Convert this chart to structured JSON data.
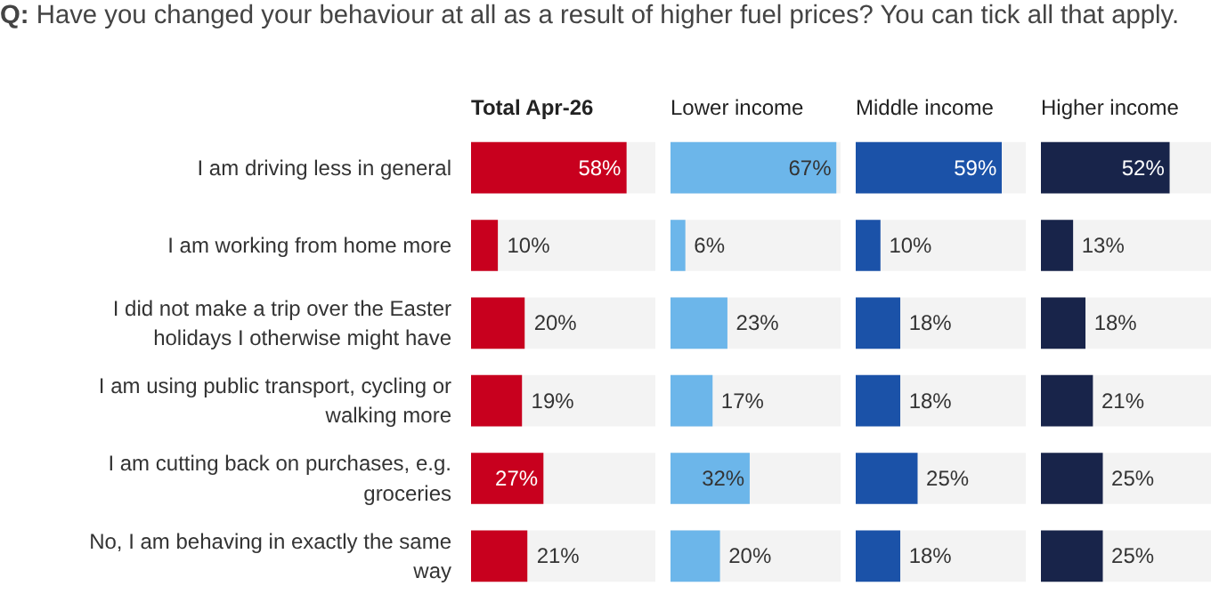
{
  "chart_data": [
    {
      "type": "bar",
      "orientation": "horizontal",
      "title": "Total Apr-26",
      "annotations": [
        "Q: Have you changed your behaviour at all as a result of higher fuel prices? You can tick all that apply."
      ],
      "categories": [
        "I am driving less in general",
        "I am working from home more",
        "I did not make a trip over the Easter holidays I otherwise might have",
        "I am using public transport, cycling or walking more",
        "I am cutting back on purchases, e.g. groceries",
        "No, I am behaving in exactly the same way"
      ],
      "tick_labels": "y",
      "series": [
        {
          "color": "#c8001e",
          "values": [
            58,
            10,
            20,
            19,
            27,
            21
          ],
          "value_labels": [
            "58%",
            "10%",
            "20%",
            "19%",
            "27%",
            "21%"
          ]
        }
      ]
    },
    {
      "type": "bar",
      "orientation": "horizontal",
      "title": "Lower income",
      "categories": [
        "I am driving less in general",
        "I am working from home more",
        "I did not make a trip over the Easter holidays I otherwise might have",
        "I am using public transport, cycling or walking more",
        "I am cutting back on purchases, e.g. groceries",
        "No, I am behaving in exactly the same way"
      ],
      "tick_labels": false,
      "series": [
        {
          "color": "#6cb6ea",
          "values": [
            67,
            6,
            23,
            17,
            32,
            20
          ],
          "value_labels": [
            "67%",
            "6%",
            "23%",
            "17%",
            "32%",
            "20%"
          ]
        }
      ]
    },
    {
      "type": "bar",
      "orientation": "horizontal",
      "title": "Middle income",
      "categories": [
        "I am driving less in general",
        "I am working from home more",
        "I did not make a trip over the Easter holidays I otherwise might have",
        "I am using public transport, cycling or walking more",
        "I am cutting back on purchases, e.g. groceries",
        "No, I am behaving in exactly the same way"
      ],
      "tick_labels": false,
      "series": [
        {
          "color": "#1b52a8",
          "values": [
            59,
            10,
            18,
            18,
            25,
            18
          ],
          "value_labels": [
            "59%",
            "10%",
            "18%",
            "18%",
            "25%",
            "18%"
          ]
        }
      ]
    },
    {
      "type": "bar",
      "orientation": "horizontal",
      "title": "Higher income",
      "categories": [
        "I am driving less in general",
        "I am working from home more",
        "I did not make a trip over the Easter holidays I otherwise might have",
        "I am using public transport, cycling or walking more",
        "I am cutting back on purchases, e.g. groceries",
        "No, I am behaving in exactly the same way"
      ],
      "tick_labels": false,
      "series": [
        {
          "color": "#18244a",
          "values": [
            52,
            13,
            18,
            21,
            25,
            25
          ],
          "value_labels": [
            "52%",
            "13%",
            "18%",
            "21%",
            "25%",
            "25%"
          ]
        }
      ]
    }
  ]
}
